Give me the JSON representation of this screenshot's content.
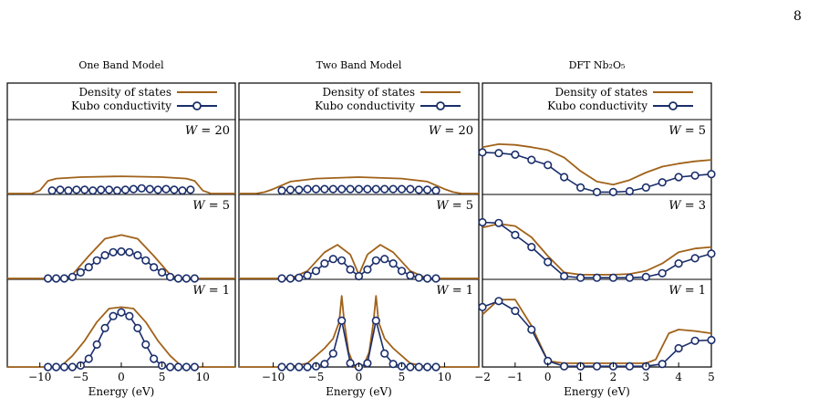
{
  "page_number": "8",
  "colors": {
    "dos": "#a0621a",
    "kubo": "#1a2e6b",
    "frame": "#000000"
  },
  "chart_data": [
    {
      "type": "line",
      "title": "One Band Model",
      "xlabel": "Energy (eV)",
      "xlim": [
        -14,
        14
      ],
      "xticks": [
        -10,
        -5,
        0,
        5,
        10
      ],
      "legend": {
        "position": "top",
        "dos_label": "Density of states",
        "kubo_label": "Kubo conductivity"
      },
      "rows": [
        {
          "label": "W = 20",
          "dos": {
            "x": [
              -14,
              -11,
              -10,
              -9,
              -8,
              -5,
              0,
              5,
              8,
              9,
              10,
              11,
              14
            ],
            "y": [
              0,
              0,
              0.04,
              0.17,
              0.2,
              0.22,
              0.23,
              0.22,
              0.2,
              0.17,
              0.04,
              0,
              0
            ]
          },
          "kubo": {
            "x": [
              -8.5,
              -7.5,
              -6.5,
              -5.5,
              -4.5,
              -3.5,
              -2.5,
              -1.5,
              -0.5,
              0.5,
              1.5,
              2.5,
              3.5,
              4.5,
              5.5,
              6.5,
              7.5,
              8.5
            ],
            "y": [
              0.04,
              0.05,
              0.04,
              0.05,
              0.05,
              0.04,
              0.05,
              0.05,
              0.04,
              0.05,
              0.06,
              0.07,
              0.06,
              0.05,
              0.06,
              0.05,
              0.04,
              0.05
            ]
          }
        },
        {
          "label": "W = 5",
          "dos": {
            "x": [
              -14,
              -7,
              -6,
              -4,
              -2,
              0,
              2,
              4,
              6,
              7,
              14
            ],
            "y": [
              0,
              0,
              0.05,
              0.3,
              0.53,
              0.58,
              0.53,
              0.3,
              0.05,
              0,
              0
            ]
          },
          "kubo": {
            "x": [
              -9,
              -8,
              -7,
              -6,
              -5,
              -4,
              -3,
              -2,
              -1,
              0,
              1,
              2,
              3,
              4,
              5,
              6,
              7,
              8,
              9
            ],
            "y": [
              0,
              0,
              0,
              0.02,
              0.08,
              0.15,
              0.24,
              0.31,
              0.35,
              0.36,
              0.35,
              0.31,
              0.24,
              0.15,
              0.08,
              0.02,
              0,
              0,
              0
            ]
          }
        },
        {
          "label": "W = 1",
          "dos": {
            "x": [
              -14,
              -7.5,
              -6,
              -4.5,
              -3,
              -1.5,
              0,
              1.5,
              3,
              4.5,
              6,
              7.5,
              14
            ],
            "y": [
              0,
              0,
              0.15,
              0.35,
              0.6,
              0.78,
              0.8,
              0.78,
              0.6,
              0.35,
              0.15,
              0,
              0
            ]
          },
          "kubo": {
            "x": [
              -9,
              -8,
              -7,
              -6,
              -5,
              -4,
              -3,
              -2,
              -1,
              0,
              1,
              2,
              3,
              4,
              5,
              6,
              7,
              8,
              9
            ],
            "y": [
              0,
              0,
              0,
              0,
              0.02,
              0.11,
              0.3,
              0.52,
              0.68,
              0.73,
              0.68,
              0.52,
              0.3,
              0.11,
              0.02,
              0,
              0,
              0,
              0
            ]
          }
        }
      ]
    },
    {
      "type": "line",
      "title": "Two Band Model",
      "xlabel": "Energy (eV)",
      "xlim": [
        -14,
        14
      ],
      "xticks": [
        -10,
        -5,
        0,
        5,
        10
      ],
      "legend": {
        "position": "top",
        "dos_label": "Density of states",
        "kubo_label": "Kubo conductivity"
      },
      "rows": [
        {
          "label": "W = 20",
          "dos": {
            "x": [
              -14,
              -12,
              -11,
              -10,
              -8,
              -5,
              0,
              5,
              8,
              10,
              11,
              12,
              14
            ],
            "y": [
              0,
              0,
              0.02,
              0.06,
              0.16,
              0.2,
              0.22,
              0.2,
              0.16,
              0.06,
              0.02,
              0,
              0
            ]
          },
          "kubo": {
            "x": [
              -9,
              -8,
              -7,
              -6,
              -5,
              -4,
              -3,
              -2,
              -1,
              0,
              1,
              2,
              3,
              4,
              5,
              6,
              7,
              8,
              9
            ],
            "y": [
              0.04,
              0.05,
              0.05,
              0.06,
              0.06,
              0.06,
              0.06,
              0.06,
              0.06,
              0.06,
              0.06,
              0.06,
              0.06,
              0.06,
              0.06,
              0.06,
              0.05,
              0.05,
              0.04
            ]
          }
        },
        {
          "label": "W = 5",
          "dos": {
            "x": [
              -14,
              -8,
              -6,
              -4,
              -2.5,
              -1,
              0,
              1,
              2.5,
              4,
              6,
              8,
              14
            ],
            "y": [
              0,
              0,
              0.1,
              0.35,
              0.45,
              0.32,
              0.05,
              0.32,
              0.45,
              0.35,
              0.1,
              0,
              0
            ]
          },
          "kubo": {
            "x": [
              -9,
              -8,
              -7,
              -6,
              -5,
              -4,
              -3,
              -2,
              -1,
              0,
              1,
              2,
              3,
              4,
              5,
              6,
              7,
              8,
              9
            ],
            "y": [
              0,
              0,
              0.01,
              0.04,
              0.1,
              0.2,
              0.26,
              0.24,
              0.12,
              0.03,
              0.12,
              0.24,
              0.26,
              0.2,
              0.1,
              0.04,
              0.01,
              0,
              0
            ]
          }
        },
        {
          "label": "W = 1",
          "dos": {
            "x": [
              -14,
              -8,
              -6,
              -4,
              -3,
              -2.3,
              -2,
              -1.7,
              -1.2,
              -0.5,
              0,
              0.5,
              1.2,
              1.7,
              2,
              2.3,
              3,
              4,
              6,
              8,
              14
            ],
            "y": [
              0,
              0,
              0.05,
              0.25,
              0.38,
              0.6,
              0.95,
              0.6,
              0.2,
              0,
              0,
              0,
              0.2,
              0.6,
              0.95,
              0.6,
              0.38,
              0.25,
              0.05,
              0,
              0
            ]
          },
          "kubo": {
            "x": [
              -9,
              -8,
              -7,
              -6,
              -5,
              -4,
              -3,
              -2,
              -1,
              0,
              1,
              2,
              3,
              4,
              5,
              6,
              7,
              8,
              9
            ],
            "y": [
              0,
              0,
              0,
              0,
              0.01,
              0.04,
              0.18,
              0.62,
              0.05,
              0,
              0.05,
              0.62,
              0.18,
              0.04,
              0.01,
              0,
              0,
              0,
              0
            ]
          }
        }
      ]
    },
    {
      "type": "line",
      "title": "DFT Nb₂O₅",
      "xlabel": "Energy (eV)",
      "xlim": [
        -2,
        5
      ],
      "xticks": [
        -2,
        -1,
        0,
        1,
        2,
        3,
        4,
        5
      ],
      "legend": {
        "position": "top",
        "dos_label": "Density of states",
        "kubo_label": "Kubo conductivity"
      },
      "rows": [
        {
          "label": "W = 5",
          "dos": {
            "x": [
              -2,
              -1.5,
              -1,
              -0.5,
              0,
              0.5,
              1,
              1.5,
              2,
              2.5,
              3,
              3.5,
              4,
              4.5,
              5
            ],
            "y": [
              0.62,
              0.66,
              0.65,
              0.62,
              0.58,
              0.48,
              0.3,
              0.16,
              0.12,
              0.18,
              0.28,
              0.36,
              0.4,
              0.43,
              0.45
            ]
          },
          "kubo": {
            "x": [
              -2,
              -1.5,
              -1,
              -0.5,
              0,
              0.5,
              1,
              1.5,
              2,
              2.5,
              3,
              3.5,
              4,
              4.5,
              5
            ],
            "y": [
              0.55,
              0.54,
              0.52,
              0.45,
              0.38,
              0.22,
              0.08,
              0.02,
              0.02,
              0.03,
              0.08,
              0.15,
              0.22,
              0.24,
              0.26
            ]
          }
        },
        {
          "label": "W = 3",
          "dos": {
            "x": [
              -2,
              -1.5,
              -1,
              -0.5,
              0,
              0.5,
              1,
              1.5,
              2,
              2.5,
              3,
              3.5,
              4,
              4.5,
              5
            ],
            "y": [
              0.68,
              0.73,
              0.7,
              0.55,
              0.3,
              0.08,
              0.05,
              0.05,
              0.05,
              0.06,
              0.1,
              0.2,
              0.35,
              0.4,
              0.42
            ]
          },
          "kubo": {
            "x": [
              -2,
              -1.5,
              -1,
              -0.5,
              0,
              0.5,
              1,
              1.5,
              2,
              2.5,
              3,
              3.5,
              4,
              4.5,
              5
            ],
            "y": [
              0.75,
              0.74,
              0.58,
              0.42,
              0.22,
              0.03,
              0.01,
              0.01,
              0.01,
              0.01,
              0.02,
              0.07,
              0.2,
              0.27,
              0.33
            ]
          }
        },
        {
          "label": "W = 1",
          "dos": {
            "x": [
              -2,
              -1.5,
              -1,
              -0.5,
              0,
              0.5,
              1,
              2,
              3,
              3.3,
              3.7,
              4,
              4.5,
              5
            ],
            "y": [
              0.7,
              0.9,
              0.9,
              0.55,
              0.08,
              0.05,
              0.05,
              0.05,
              0.05,
              0.1,
              0.45,
              0.5,
              0.48,
              0.45
            ]
          },
          "kubo": {
            "x": [
              -2,
              -1.5,
              -1,
              -0.5,
              0,
              0.5,
              1,
              1.5,
              2,
              2.5,
              3,
              3.5,
              4,
              4.5,
              5
            ],
            "y": [
              0.8,
              0.88,
              0.75,
              0.5,
              0.08,
              0.01,
              0.01,
              0.01,
              0.01,
              0.01,
              0.01,
              0.04,
              0.25,
              0.35,
              0.36
            ]
          }
        }
      ]
    }
  ]
}
